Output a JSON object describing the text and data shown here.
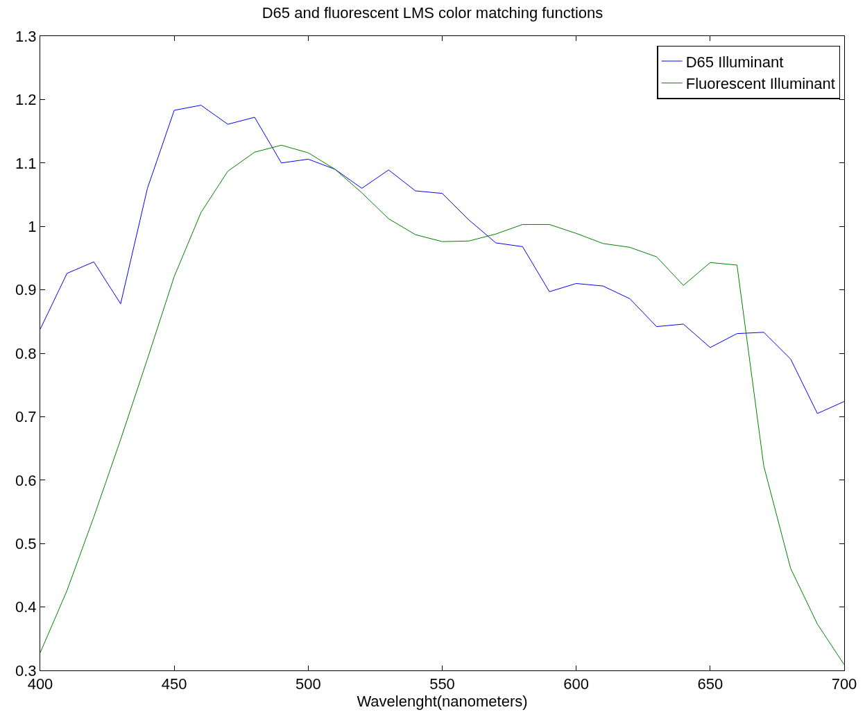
{
  "chart_data": {
    "type": "line",
    "title": "D65 and fluorescent LMS color matching functions",
    "xlabel": "Wavelenght(nanometers)",
    "x": [
      400,
      410,
      420,
      430,
      440,
      450,
      460,
      470,
      480,
      490,
      500,
      510,
      520,
      530,
      540,
      550,
      560,
      570,
      580,
      590,
      600,
      610,
      620,
      630,
      640,
      650,
      660,
      670,
      680,
      690,
      700
    ],
    "series": [
      {
        "name": "D65 Illuminant",
        "color": "#0000ff",
        "values": [
          0.838,
          0.926,
          0.944,
          0.878,
          1.06,
          1.183,
          1.191,
          1.161,
          1.172,
          1.1,
          1.106,
          1.09,
          1.06,
          1.089,
          1.056,
          1.052,
          1.01,
          0.974,
          0.968,
          0.897,
          0.91,
          0.906,
          0.886,
          0.842,
          0.846,
          0.809,
          0.831,
          0.833,
          0.791,
          0.705,
          0.724
        ]
      },
      {
        "name": "Fluorescent Illuminant",
        "color": "#008000",
        "values": [
          0.328,
          0.426,
          0.542,
          0.664,
          0.791,
          0.921,
          1.022,
          1.087,
          1.117,
          1.128,
          1.116,
          1.09,
          1.053,
          1.012,
          0.987,
          0.976,
          0.977,
          0.988,
          1.003,
          1.003,
          0.989,
          0.973,
          0.967,
          0.952,
          0.907,
          0.943,
          0.939,
          0.622,
          0.461,
          0.373,
          0.309
        ]
      }
    ],
    "xlim": [
      400,
      700
    ],
    "xticks": [
      400,
      450,
      500,
      550,
      600,
      650,
      700
    ],
    "ylim": [
      0.3,
      1.3
    ],
    "yticks": [
      0.3,
      0.4,
      0.5,
      0.6,
      0.7,
      0.8,
      0.9,
      1,
      1.1,
      1.2,
      1.3
    ],
    "grid": false,
    "legend": "top right",
    "marker": "none",
    "line_style": "solid"
  }
}
